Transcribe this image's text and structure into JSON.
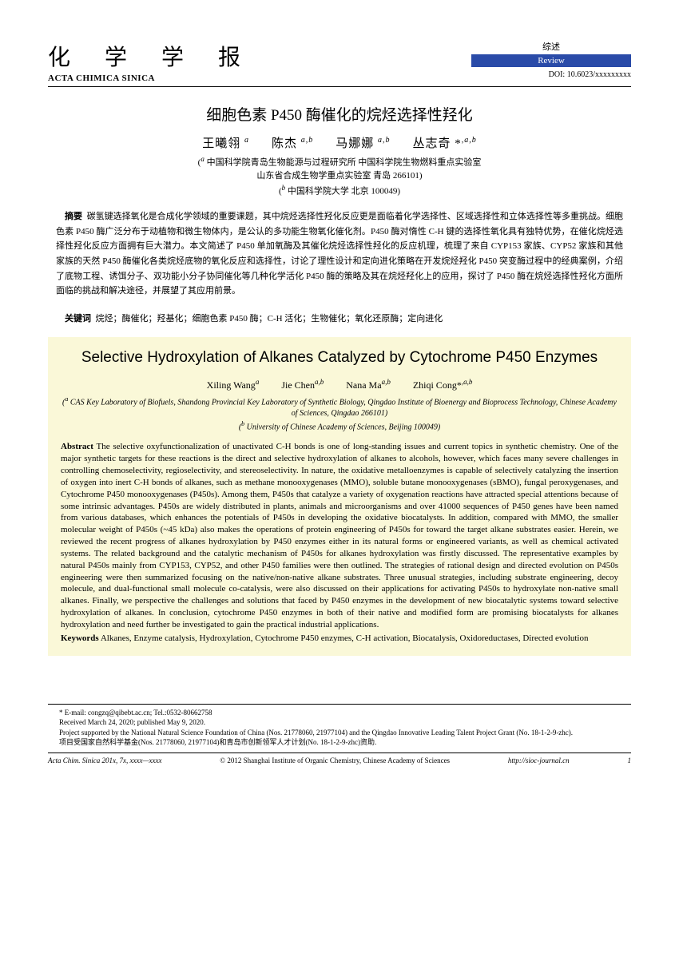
{
  "header": {
    "journal_cn": "化 学 学 报",
    "journal_en": "ACTA CHIMICA SINICA",
    "review_cn": "综述",
    "review_en": "Review",
    "doi": "DOI: 10.6023/xxxxxxxxx"
  },
  "title_cn": "细胞色素 P450 酶催化的烷烃选择性羟化",
  "authors_cn_html": "王曦翎 <span class='sup'>a</span><span class='gap'></span>陈杰 <span class='sup'>a,b</span><span class='gap'></span>马娜娜 <span class='sup'>a,b</span><span class='gap'></span>丛志奇 *<span class='sup'>,a,b</span>",
  "affil_cn_html": "(<span class='sup'>a</span> 中国科学院青岛生物能源与过程研究所 中国科学院生物燃料重点实验室<br>山东省合成生物学重点实验室 青岛 266101)<br>(<span class='sup'>b</span> 中国科学院大学 北京 100049)",
  "abstract_cn": "碳氢键选择氧化是合成化学领域的重要课题，其中烷烃选择性羟化反应更是面临着化学选择性、区域选择性和立体选择性等多重挑战。细胞色素 P450 酶广泛分布于动植物和微生物体内，是公认的多功能生物氧化催化剂。P450 酶对惰性 C-H 键的选择性氧化具有独特优势，在催化烷烃选择性羟化反应方面拥有巨大潜力。本文简述了 P450 单加氧酶及其催化烷烃选择性羟化的反应机理，梳理了来自 CYP153 家族、CYP52 家族和其他家族的天然 P450 酶催化各类烷烃底物的氧化反应和选择性，讨论了理性设计和定向进化策略在开发烷烃羟化 P450 突变酶过程中的经典案例，介绍了底物工程、诱饵分子、双功能小分子协同催化等几种化学活化 P450 酶的策略及其在烷烃羟化上的应用，探讨了 P450 酶在烷烃选择性羟化方面所面临的挑战和解决途径，并展望了其应用前景。",
  "abstract_cn_label": "摘要",
  "keywords_cn_label": "关键词",
  "keywords_cn": "烷烃；酶催化；羟基化；细胞色素 P450 酶；C-H 活化；生物催化；氧化还原酶；定向进化",
  "title_en": "Selective Hydroxylation of Alkanes Catalyzed by Cytochrome P450 Enzymes",
  "authors_en_html": "Xiling Wang<span class='sup'>a</span><span class='gap'></span>Jie Chen<span class='sup'>a,b</span><span class='gap'></span>Nana Ma<span class='sup'>a,b</span><span class='gap'></span>Zhiqi Cong*<span class='sup'>,a,b</span>",
  "affil_en_html": "(<span class='sup'>a</span> CAS Key Laboratory of Biofuels, Shandong Provincial Key Laboratory of Synthetic Biology, Qingdao Institute of Bioenergy and Bioprocess Technology, Chinese Academy of Sciences, Qingdao 266101)<br>(<span class='sup'>b</span> University of Chinese Academy of Sciences, Beijing 100049)",
  "abstract_en_label": "Abstract",
  "abstract_en": "The selective oxyfunctionalization of unactivated C-H bonds is one of long-standing issues and current topics in synthetic chemistry. One of the major synthetic targets for these reactions is the direct and selective hydroxylation of alkanes to alcohols, however, which faces many severe challenges in controlling chemoselectivity, regioselectivity, and stereoselectivity. In nature, the oxidative metalloenzymes is capable of selectively catalyzing the insertion of oxygen into inert C-H bonds of alkanes, such as methane monooxygenases (MMO), soluble butane monooxygenases (sBMO), fungal peroxygenases, and Cytochrome P450 monooxygenases (P450s). Among them, P450s that catalyze a variety of oxygenation reactions have attracted special attentions because of some intrinsic advantages. P450s are widely distributed in plants, animals and microorganisms and over 41000 sequences of P450 genes have been named from various databases, which enhances the potentials of P450s in developing the oxidative biocatalysts. In addition, compared with MMO, the smaller molecular weight of P450s (~45 kDa) also makes the operations of protein engineering of P450s for toward the target alkane substrates easier. Herein, we reviewed the recent progress of alkanes hydroxylation by P450 enzymes either in its natural forms or engineered variants, as well as chemical activated systems. The related background and the catalytic mechanism of P450s for alkanes hydroxylation was firstly discussed. The representative examples by natural P450s mainly from CYP153, CYP52, and other P450 families were then outlined. The strategies of rational design and directed evolution on P450s engineering were then summarized focusing on the native/non-native alkane substrates. Three unusual strategies, including substrate engineering, decoy molecule, and dual-functional small molecule co-catalysis, were also discussed on their applications for activating P450s to hydroxylate non-native small alkanes. Finally, we perspective the challenges and solutions that faced by P450 enzymes in the development of new biocatalytic systems toward selective hydroxylation of alkanes. In conclusion, cytochrome P450 enzymes in both of their native and modified form are promising biocatalysts for alkanes hydroxylation and need further be investigated to gain the practical industrial applications.",
  "keywords_en_label": "Keywords",
  "keywords_en": "Alkanes, Enzyme catalysis, Hydroxylation, Cytochrome P450 enzymes, C-H activation, Biocatalysis, Oxidoreductases, Directed evolution",
  "footnotes": {
    "l1": "* E-mail: congzq@qibebt.ac.cn; Tel.:0532-80662758",
    "l2": "Received March 24, 2020; published May 9, 2020.",
    "l3": "Project supported by the National Natural Science Foundation of China (Nos. 21778060, 21977104) and the Qingdao Innovative Leading Talent Project Grant (No. 18-1-2-9-zhc).",
    "l4": "项目受国家自然科学基金(Nos. 21778060, 21977104)和青岛市创新领军人才计划(No. 18-1-2-9-zhc)资助."
  },
  "footer": {
    "left": "Acta Chim. Sinica 201x, 7x, xxxx—xxxx",
    "center": "© 2012 Shanghai Institute of Organic Chemistry, Chinese Academy of Sciences",
    "right": "http://sioc-journal.cn",
    "page": "1"
  }
}
